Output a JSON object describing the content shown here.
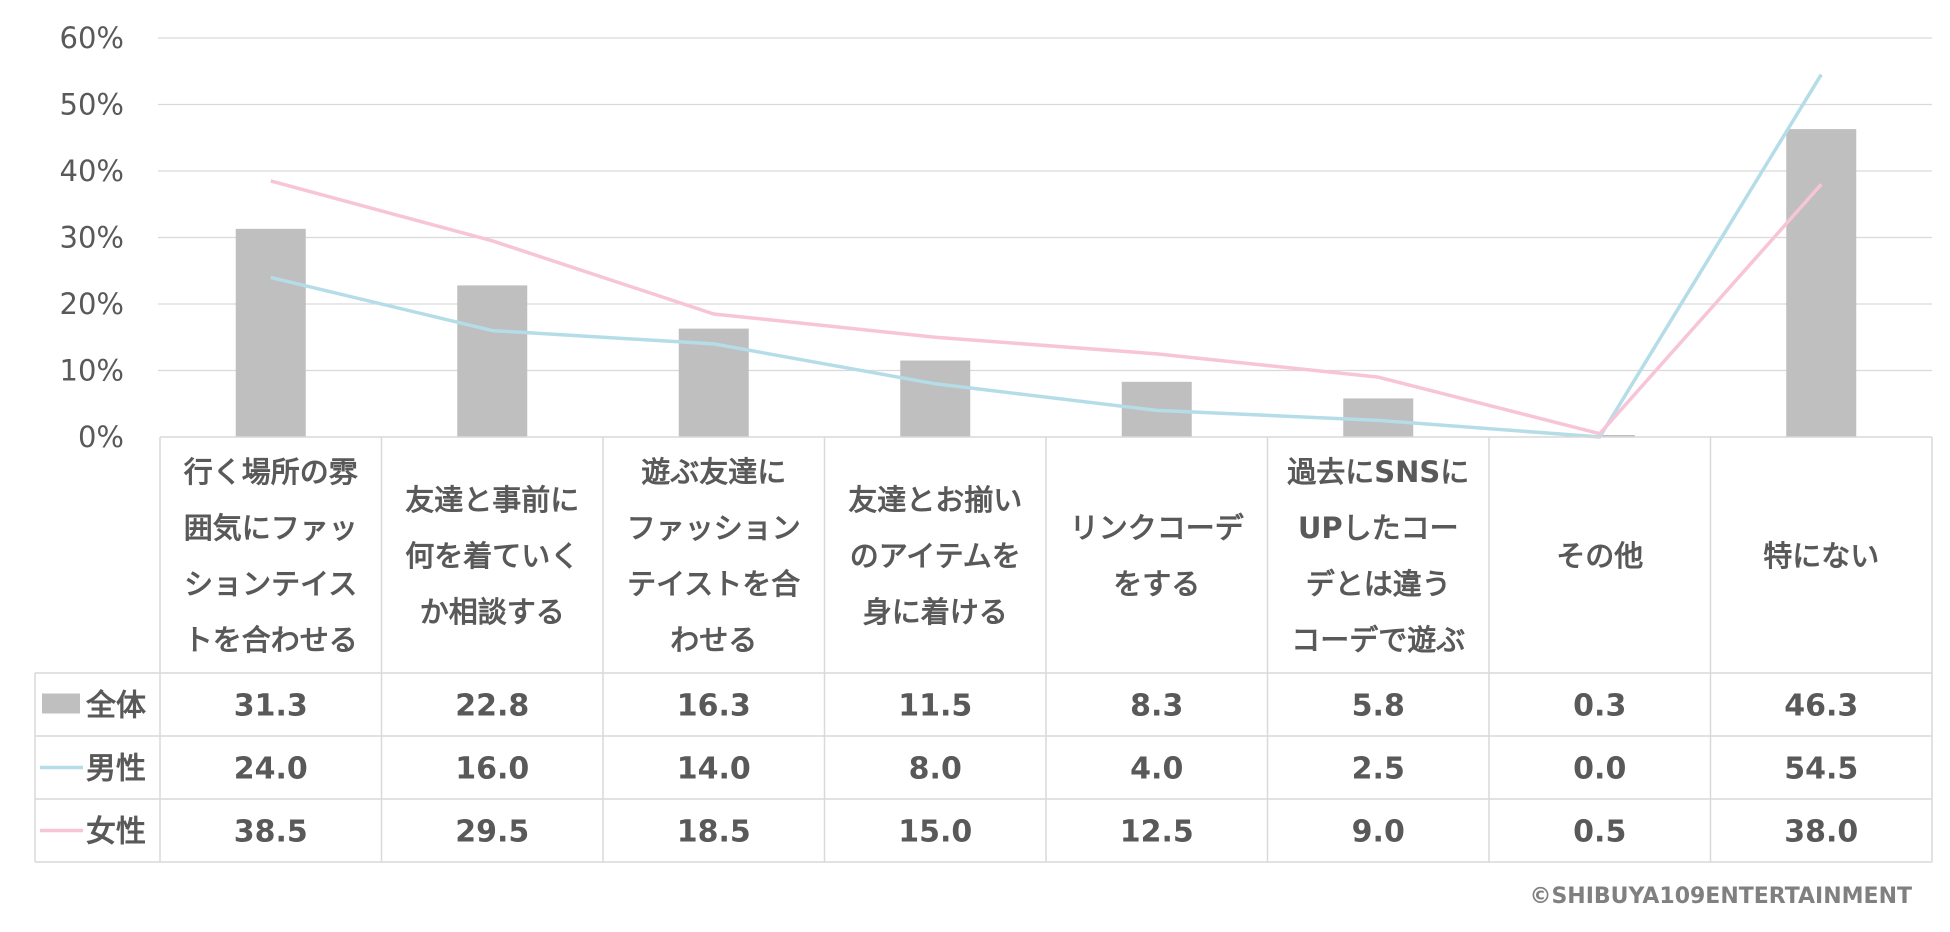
{
  "chart_data": {
    "type": "bar",
    "title": "",
    "xlabel": "",
    "ylabel": "",
    "ylim": [
      0,
      60
    ],
    "y_ticks": [
      "0%",
      "10%",
      "20%",
      "30%",
      "40%",
      "50%",
      "60%"
    ],
    "grid": true,
    "categories": [
      [
        "行く場所の雰",
        "囲気にファッ",
        "ションテイス",
        "トを合わせる"
      ],
      [
        "友達と事前に",
        "何を着ていく",
        "か相談する"
      ],
      [
        "遊ぶ友達に",
        "ファッション",
        "テイストを合",
        "わせる"
      ],
      [
        "友達とお揃い",
        "のアイテムを",
        "身に着ける"
      ],
      [
        "リンクコーデ",
        "をする"
      ],
      [
        "過去にSNSに",
        "UPしたコー",
        "デとは違う",
        "コーデで遊ぶ"
      ],
      [
        "その他"
      ],
      [
        "特にない"
      ]
    ],
    "series": [
      {
        "name": "全体",
        "kind": "bar",
        "color": "#bfbfbf",
        "values": [
          31.3,
          22.8,
          16.3,
          11.5,
          8.3,
          5.8,
          0.3,
          46.3
        ],
        "labels": [
          "31.3",
          "22.8",
          "16.3",
          "11.5",
          "8.3",
          "5.8",
          "0.3",
          "46.3"
        ]
      },
      {
        "name": "男性",
        "kind": "line",
        "color": "#b4dde8",
        "values": [
          24.0,
          16.0,
          14.0,
          8.0,
          4.0,
          2.5,
          0.0,
          54.5
        ],
        "labels": [
          "24.0",
          "16.0",
          "14.0",
          "8.0",
          "4.0",
          "2.5",
          "0.0",
          "54.5"
        ]
      },
      {
        "name": "女性",
        "kind": "line",
        "color": "#f7c4d8",
        "values": [
          38.5,
          29.5,
          18.5,
          15.0,
          12.5,
          9.0,
          0.5,
          38.0
        ],
        "labels": [
          "38.5",
          "29.5",
          "18.5",
          "15.0",
          "12.5",
          "9.0",
          "0.5",
          "38.0"
        ]
      }
    ]
  },
  "footer": {
    "copyright": "©SHIBUYA109ENTERTAINMENT"
  }
}
